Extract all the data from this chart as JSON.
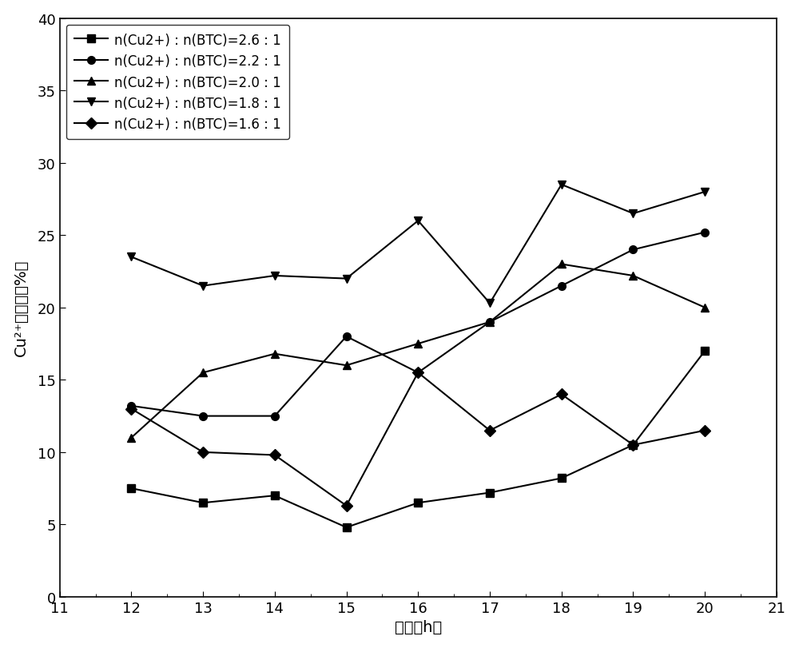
{
  "x": [
    12,
    13,
    14,
    15,
    16,
    17,
    18,
    19,
    20
  ],
  "series": [
    {
      "label": "n(Cu2+) : n(BTC)=2.6 : 1",
      "marker": "s",
      "values": [
        7.5,
        6.5,
        7.0,
        4.8,
        6.5,
        7.2,
        8.2,
        10.5,
        17.0
      ]
    },
    {
      "label": "n(Cu2+) : n(BTC)=2.2 : 1",
      "marker": "o",
      "values": [
        13.2,
        12.5,
        12.5,
        18.0,
        15.5,
        19.0,
        21.5,
        24.0,
        25.2
      ]
    },
    {
      "label": "n(Cu2+) : n(BTC)=2.0 : 1",
      "marker": "^",
      "values": [
        11.0,
        15.5,
        16.8,
        16.0,
        17.5,
        19.0,
        23.0,
        22.2,
        20.0
      ]
    },
    {
      "label": "n(Cu2+) : n(BTC)=1.8 : 1",
      "marker": "v",
      "values": [
        23.5,
        21.5,
        22.2,
        22.0,
        26.0,
        20.3,
        28.5,
        26.5,
        28.0
      ]
    },
    {
      "label": "n(Cu2+) : n(BTC)=1.6 : 1",
      "marker": "D",
      "values": [
        13.0,
        10.0,
        9.8,
        6.3,
        15.5,
        11.5,
        14.0,
        10.5,
        11.5
      ]
    }
  ],
  "xlim": [
    11,
    21
  ],
  "ylim": [
    0,
    40
  ],
  "xticks": [
    11,
    12,
    13,
    14,
    15,
    16,
    17,
    18,
    19,
    20,
    21
  ],
  "yticks": [
    0,
    5,
    10,
    15,
    20,
    25,
    30,
    35,
    40
  ],
  "xlabel_zh": "时间（h）",
  "ylabel_zh": "Cu²⁺去除率（%）",
  "ylabel_fallback": "Cu2+去除率（%）",
  "line_color": "#000000",
  "bg_color": "#ffffff",
  "markersize": 7,
  "linewidth": 1.5,
  "tick_fontsize": 13,
  "label_fontsize": 14,
  "legend_fontsize": 12
}
